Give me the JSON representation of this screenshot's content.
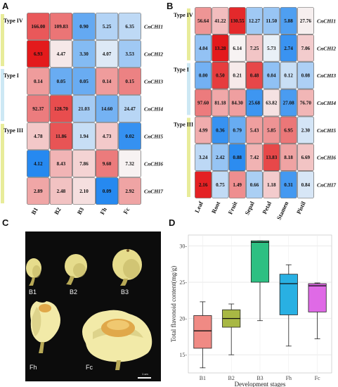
{
  "panels": {
    "A": "A",
    "B": "B",
    "C": "C",
    "D": "D"
  },
  "heatmap_A": {
    "columns": [
      "B1",
      "B2",
      "B3",
      "Fh",
      "Fc"
    ],
    "genes": [
      "CnCHI1",
      "CnCHI2",
      "CnCHI3",
      "CnCHI4",
      "CnCHI5",
      "CnCHI6",
      "CnCHI7"
    ],
    "types": [
      {
        "label": "Type IV",
        "rows": [
          0,
          1
        ],
        "color": "#e8ec9a"
      },
      {
        "label": "Type I",
        "rows": [
          2,
          3
        ],
        "color": "#cde8f4"
      },
      {
        "label": "Type III",
        "rows": [
          4,
          6
        ],
        "color": "#e8ec9a"
      }
    ],
    "values": [
      [
        "166.00",
        "109.83",
        "0.90",
        "5.25",
        "6.35"
      ],
      [
        "6.93",
        "4.47",
        "3.30",
        "4.07",
        "3.53"
      ],
      [
        "0.14",
        "0.05",
        "0.05",
        "0.14",
        "0.15"
      ],
      [
        "92.37",
        "128.70",
        "21.03",
        "14.60",
        "24.47"
      ],
      [
        "4.78",
        "11.86",
        "1.94",
        "4.73",
        "0.02"
      ],
      [
        "4.12",
        "8.43",
        "7.86",
        "9.60",
        "7.32"
      ],
      [
        "2.89",
        "2.48",
        "2.10",
        "0.09",
        "2.92"
      ]
    ]
  },
  "heatmap_B": {
    "columns": [
      "Leaf",
      "Root",
      "Fruit",
      "Sepal",
      "Petal",
      "Stamen",
      "Pistil"
    ],
    "genes": [
      "CnCHI1",
      "CnCHI2",
      "CnCHI3",
      "CnCHI4",
      "CnCHI5",
      "CnCHI6",
      "CnCHI7"
    ],
    "types": [
      {
        "label": "Type IV",
        "rows": [
          0,
          1
        ],
        "color": "#e8ec9a"
      },
      {
        "label": "Type I",
        "rows": [
          2,
          3
        ],
        "color": "#cde8f4"
      },
      {
        "label": "Type III",
        "rows": [
          4,
          6
        ],
        "color": "#e8ec9a"
      }
    ],
    "values": [
      [
        "56.64",
        "41.22",
        "130.55",
        "12.27",
        "11.50",
        "5.88",
        "27.76"
      ],
      [
        "4.04",
        "13.28",
        "6.14",
        "7.25",
        "5.73",
        "2.74",
        "7.06"
      ],
      [
        "0.00",
        "0.50",
        "0.21",
        "0.48",
        "0.04",
        "0.12",
        "0.08"
      ],
      [
        "97.60",
        "81.18",
        "84.30",
        "25.68",
        "63.82",
        "27.08",
        "76.70"
      ],
      [
        "4.99",
        "0.36",
        "0.79",
        "5.43",
        "5.85",
        "6.95",
        "2.30"
      ],
      [
        "3.24",
        "2.42",
        "0.88",
        "7.42",
        "13.83",
        "8.18",
        "6.69"
      ],
      [
        "2.16",
        "0.75",
        "1.49",
        "0.66",
        "1.18",
        "0.31",
        "0.84"
      ]
    ]
  },
  "photos": {
    "labels": [
      "B1",
      "B2",
      "B3",
      "Fh",
      "Fc"
    ],
    "scale_label": "1 cm",
    "colors": {
      "background": "#0c0c0c",
      "bud": "#e6dc8c",
      "bud_dark": "#b8a956",
      "petal": "#f2eaa8",
      "stamen": "#e0a84a"
    }
  },
  "chart_data": {
    "type": "box",
    "categories": [
      "B1",
      "B2",
      "B3",
      "Fh",
      "Fc"
    ],
    "colors": [
      "#f08a84",
      "#a8b844",
      "#2dbf82",
      "#29b0e3",
      "#df6ae6"
    ],
    "boxes": [
      {
        "min": 13.2,
        "q1": 15.9,
        "median": 18.3,
        "q3": 20.4,
        "max": 22.3
      },
      {
        "min": 15.0,
        "q1": 18.8,
        "median": 20.0,
        "q3": 21.2,
        "max": 22.0
      },
      {
        "min": 19.7,
        "q1": 25.0,
        "median": 30.5,
        "q3": 30.7,
        "max": 30.7
      },
      {
        "min": 16.2,
        "q1": 20.5,
        "median": 24.8,
        "q3": 26.1,
        "max": 27.4
      },
      {
        "min": 17.2,
        "q1": 20.9,
        "median": 24.5,
        "q3": 24.8,
        "max": 24.9
      }
    ],
    "ylim": [
      12.5,
      31.5
    ],
    "yticks": [
      15,
      20,
      25,
      30
    ],
    "ytick_labels": [
      "15-",
      "20-",
      "25-",
      "30-"
    ],
    "xlabel": "Development stages",
    "ylabel": "Total flavonoid content(mg/g)",
    "grid": true
  }
}
